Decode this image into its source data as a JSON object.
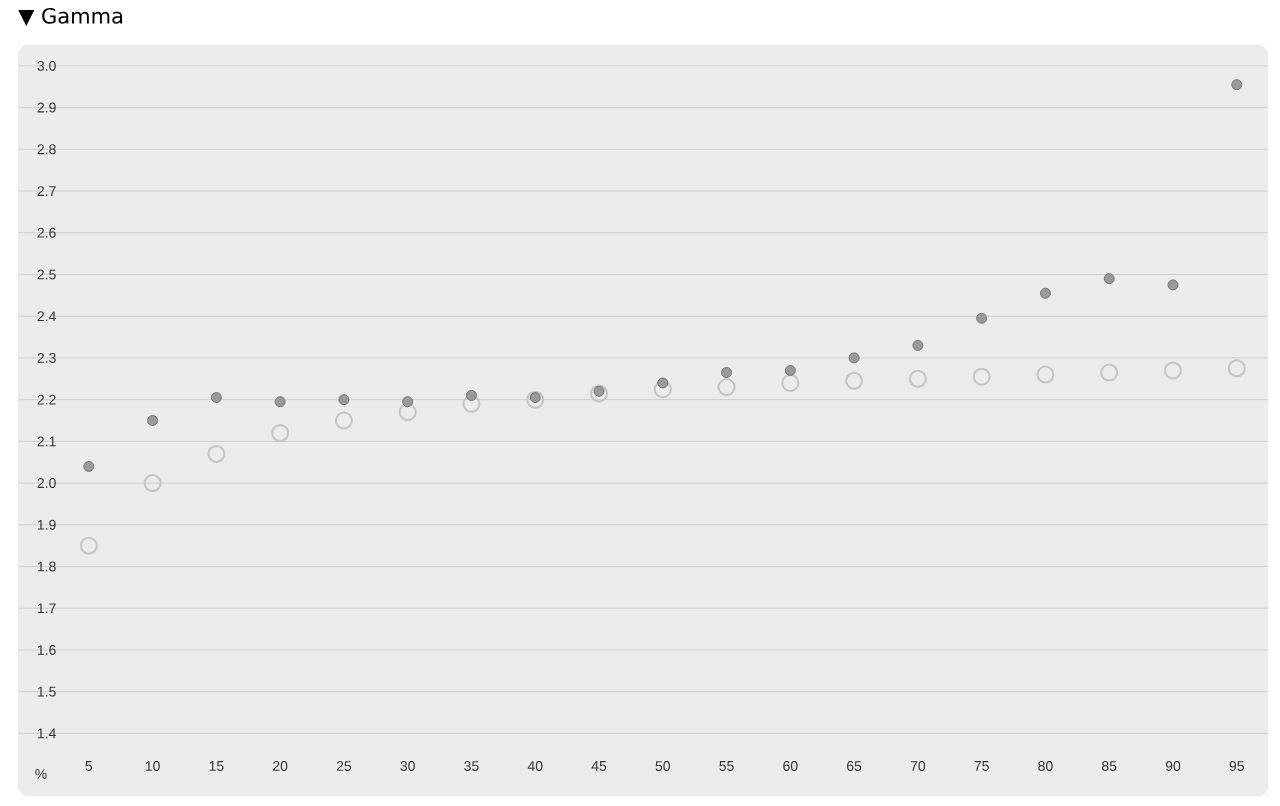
{
  "chart_data": {
    "type": "scatter",
    "title": "▼ Gamma",
    "xlabel": "%",
    "categories": [
      "5",
      "10",
      "15",
      "20",
      "25",
      "30",
      "35",
      "40",
      "45",
      "50",
      "55",
      "60",
      "65",
      "70",
      "75",
      "80",
      "85",
      "90",
      "95"
    ],
    "series": [
      {
        "color": "#9a9a9a",
        "values": [
          2.04,
          2.15,
          2.205,
          2.195,
          2.2,
          2.195,
          2.21,
          2.205,
          2.22,
          2.24,
          2.265,
          2.27,
          2.3,
          2.33,
          2.395,
          2.455,
          2.49,
          2.475,
          2.955
        ]
      },
      {
        "color": "#c4c4c4",
        "values": [
          1.85,
          2.0,
          2.07,
          2.12,
          2.15,
          2.17,
          2.19,
          2.2,
          2.215,
          2.225,
          2.23,
          2.24,
          2.245,
          2.25,
          2.255,
          2.26,
          2.265,
          2.27,
          2.275
        ]
      }
    ],
    "ylim": [
      1.25,
      3.05
    ],
    "yticks": [
      1.4,
      1.5,
      1.6,
      1.7,
      1.8,
      1.9,
      {
        "value": 2.0,
        "label": "2.0"
      },
      2.1,
      2.2,
      2.3,
      2.4,
      2.5,
      2.6,
      2.7,
      2.8,
      2.9,
      {
        "value": 3.0,
        "label": "3.0"
      }
    ],
    "grid": "y",
    "marker": "circle"
  }
}
